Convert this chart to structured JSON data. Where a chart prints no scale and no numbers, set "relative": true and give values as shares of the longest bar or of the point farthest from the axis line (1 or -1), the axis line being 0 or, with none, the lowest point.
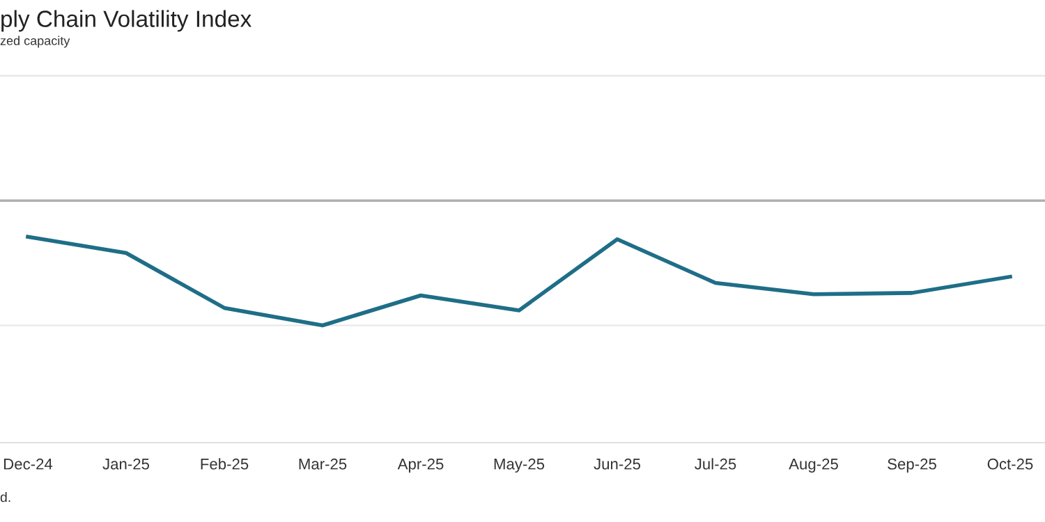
{
  "chart_data": {
    "type": "line",
    "title": "ply Chain Volatility Index",
    "subtitle": "zed capacity",
    "annotations": [
      "d."
    ],
    "categories": [
      "Dec-24",
      "Jan-25",
      "Feb-25",
      "Mar-25",
      "Apr-25",
      "May-25",
      "Jun-25",
      "Jul-25",
      "Aug-25",
      "Sep-25",
      "Oct-25"
    ],
    "series": [
      {
        "color": "#1f6e87",
        "values": [
          -0.29,
          -0.42,
          -0.86,
          -1,
          -0.76,
          -0.88,
          -0.31,
          -0.66,
          -0.75,
          -0.74,
          -0.61
        ]
      }
    ],
    "relative": true,
    "grid": "y",
    "legend": false,
    "marker": "none",
    "line_style": "solid"
  }
}
